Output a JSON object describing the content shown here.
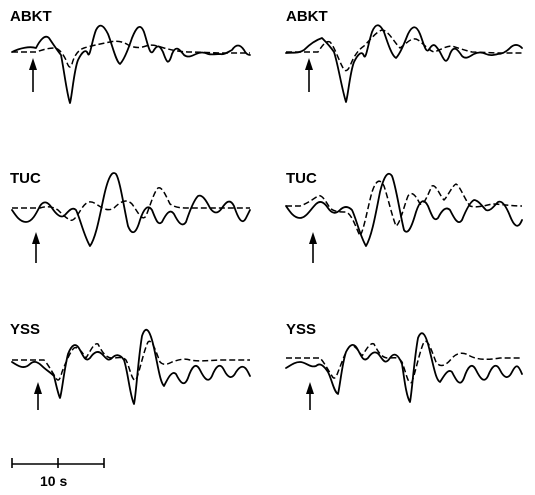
{
  "panels": [
    {
      "id": "abkt-left",
      "station": "ABKT"
    },
    {
      "id": "abkt-right",
      "station": "ABKT"
    },
    {
      "id": "tuc-left",
      "station": "TUC"
    },
    {
      "id": "tuc-right",
      "station": "TUC"
    },
    {
      "id": "yss-left",
      "station": "YSS"
    },
    {
      "id": "yss-right",
      "station": "YSS"
    }
  ],
  "scale_bar": {
    "label": "10 s"
  }
}
